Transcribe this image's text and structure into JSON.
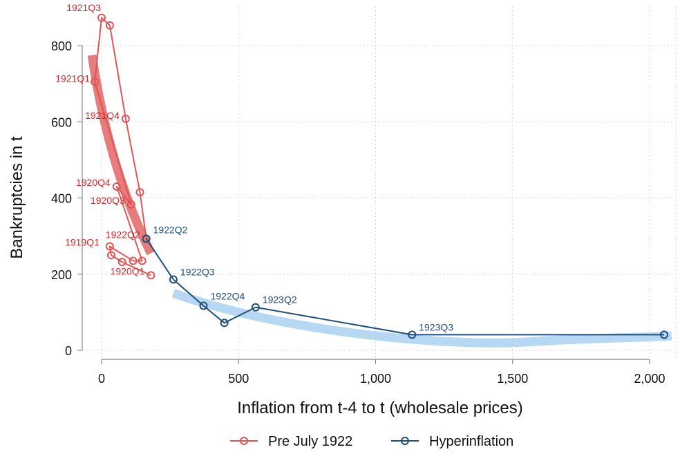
{
  "chart_data": {
    "type": "scatter",
    "title": "",
    "xlabel": "Inflation from t-4 to t (wholesale prices)",
    "ylabel": "Bankruptcies in t",
    "xlim": [
      -40,
      2090
    ],
    "ylim": [
      -20,
      885
    ],
    "x_ticks": [
      0,
      500,
      1000,
      1500,
      2000
    ],
    "x_tick_labels": [
      "0",
      "500",
      "1,000",
      "1,500",
      "2,000"
    ],
    "y_ticks": [
      0,
      200,
      400,
      600,
      800
    ],
    "y_tick_labels": [
      "0",
      "200",
      "400",
      "600",
      "800"
    ],
    "grid": true,
    "legend_position": "bottom-center",
    "colors": {
      "pre": "#d62728",
      "pre_line": "#e05555",
      "pre_fit": "#e06666",
      "hyper": "#1f4e79",
      "hyper_fit": "#a9d1f0",
      "grid": "#c8c8c8",
      "axis": "#888888"
    },
    "series": [
      {
        "name": "Pre July 1922",
        "key": "pre",
        "points": [
          {
            "x": 180,
            "y": 197,
            "label": "1920Q1"
          },
          {
            "x": 75,
            "y": 232,
            "label": ""
          },
          {
            "x": 35,
            "y": 250,
            "label": ""
          },
          {
            "x": 30,
            "y": 273,
            "label": "1919Q1"
          },
          {
            "x": 115,
            "y": 235,
            "label": ""
          },
          {
            "x": 148,
            "y": 235,
            "label": ""
          },
          {
            "x": 55,
            "y": 430,
            "label": "1920Q4"
          },
          {
            "x": 108,
            "y": 383,
            "label": "1920Q3"
          },
          {
            "x": -25,
            "y": 705,
            "label": "1921Q1"
          },
          {
            "x": 0,
            "y": 873,
            "label": "1921Q3"
          },
          {
            "x": 30,
            "y": 853,
            "label": ""
          },
          {
            "x": 88,
            "y": 608,
            "label": "1921Q4"
          },
          {
            "x": 140,
            "y": 415,
            "label": ""
          },
          {
            "x": 163,
            "y": 293,
            "label": "1922Q2"
          }
        ],
        "fit": {
          "x": [
            -35,
            180
          ],
          "y": [
            775,
            255
          ]
        }
      },
      {
        "name": "Hyperinflation",
        "key": "hyper",
        "points": [
          {
            "x": 163,
            "y": 293,
            "label": "1922Q2"
          },
          {
            "x": 262,
            "y": 186,
            "label": "1922Q3"
          },
          {
            "x": 372,
            "y": 117,
            "label": "1922Q4"
          },
          {
            "x": 448,
            "y": 72,
            "label": ""
          },
          {
            "x": 562,
            "y": 113,
            "label": "1923Q2"
          },
          {
            "x": 1133,
            "y": 41,
            "label": "1923Q3"
          },
          {
            "x": 2053,
            "y": 41,
            "label": ""
          }
        ],
        "fit": {
          "x": [
            262,
            2080
          ],
          "y": [
            150,
            38
          ],
          "vertex": [
            1550,
            22
          ]
        }
      }
    ],
    "annotations": [
      {
        "series": "pre",
        "text": "1921Q3",
        "x": 0,
        "y": 873
      },
      {
        "series": "pre",
        "text": "1921Q1",
        "x": -25,
        "y": 705
      },
      {
        "series": "pre",
        "text": "1921Q4",
        "x": 88,
        "y": 608
      },
      {
        "series": "pre",
        "text": "1920Q4",
        "x": 55,
        "y": 430
      },
      {
        "series": "pre",
        "text": "1920Q3",
        "x": 108,
        "y": 383
      },
      {
        "series": "pre",
        "text": "1922Q2",
        "x": 163,
        "y": 293
      },
      {
        "series": "pre",
        "text": "1919Q1",
        "x": 30,
        "y": 273
      },
      {
        "series": "pre",
        "text": "1920Q1",
        "x": 180,
        "y": 197
      },
      {
        "series": "hyper",
        "text": "1922Q2",
        "x": 163,
        "y": 293
      },
      {
        "series": "hyper",
        "text": "1922Q3",
        "x": 262,
        "y": 186
      },
      {
        "series": "hyper",
        "text": "1922Q4",
        "x": 372,
        "y": 117
      },
      {
        "series": "hyper",
        "text": "1923Q2",
        "x": 562,
        "y": 113
      },
      {
        "series": "hyper",
        "text": "1923Q3",
        "x": 1133,
        "y": 41
      }
    ],
    "legend": [
      {
        "series": "pre",
        "label": "Pre July 1922"
      },
      {
        "series": "hyper",
        "label": "Hyperinflation"
      }
    ]
  }
}
